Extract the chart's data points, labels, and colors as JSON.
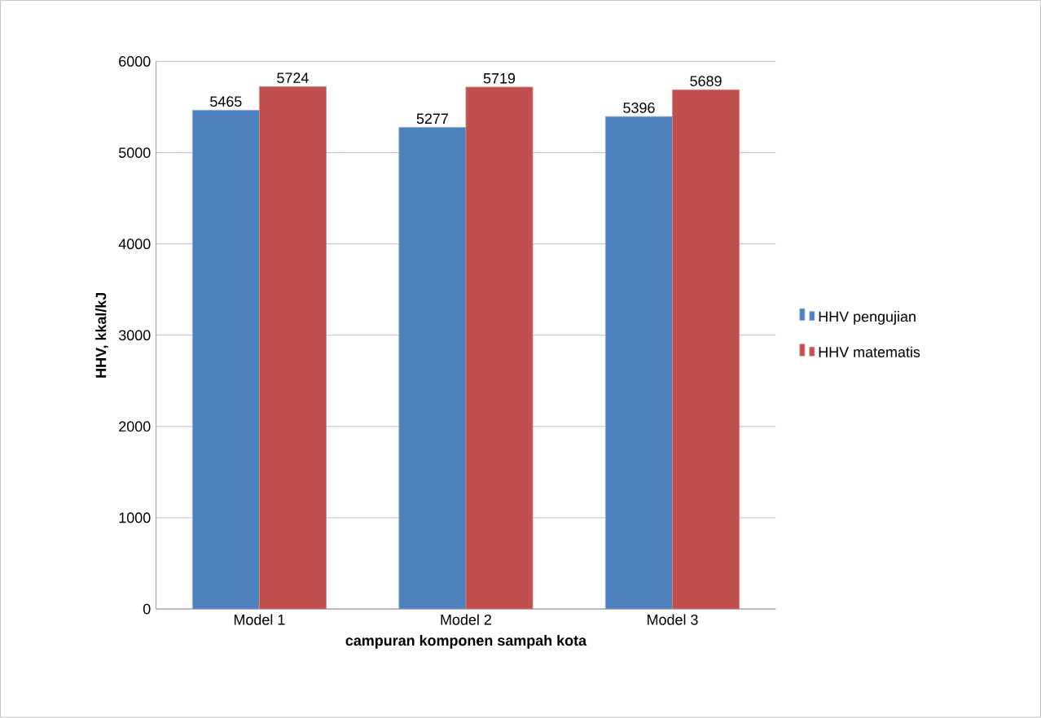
{
  "chart_data": {
    "type": "bar",
    "xlabel": "campuran komponen sampah kota",
    "ylabel": "HHV, kkal/kJ",
    "categories": [
      "Model 1",
      "Model 2",
      "Model 3"
    ],
    "series": [
      {
        "name": "HHV pengujian",
        "color": "#4f81bd",
        "values": [
          5465,
          5277,
          5396
        ]
      },
      {
        "name": "HHV matematis",
        "color": "#c0504d",
        "values": [
          5724,
          5719,
          5689
        ]
      }
    ],
    "ylim": [
      0,
      6000
    ],
    "yticks": [
      0,
      1000,
      2000,
      3000,
      4000,
      5000,
      6000
    ],
    "grid": "y",
    "legend": "right",
    "data_labels": true
  }
}
